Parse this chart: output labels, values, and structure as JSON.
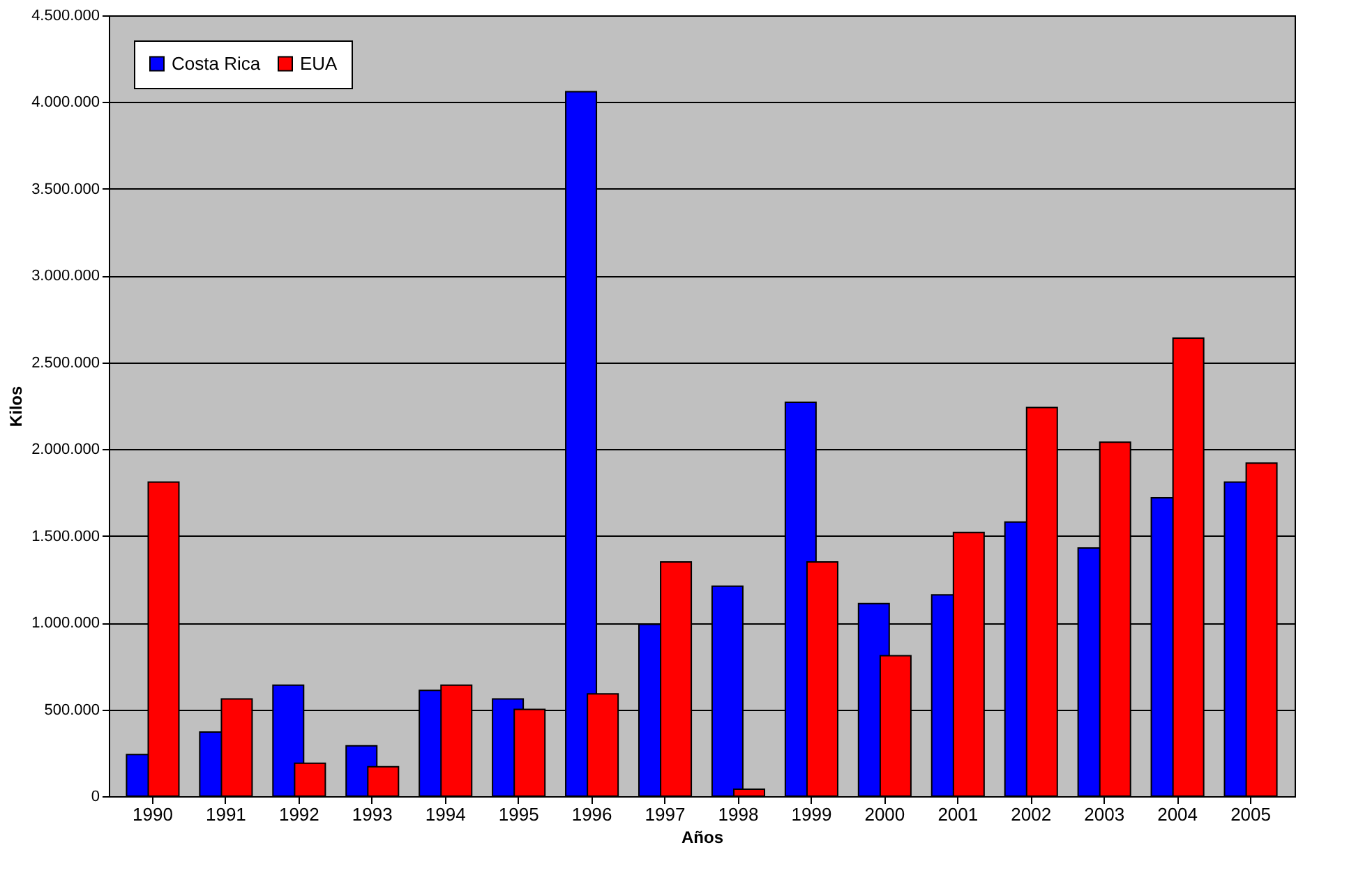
{
  "chart_data": {
    "type": "bar",
    "xlabel": "Años",
    "ylabel": "Kilos",
    "categories": [
      "1990",
      "1991",
      "1992",
      "1993",
      "1994",
      "1995",
      "1996",
      "1997",
      "1998",
      "1999",
      "2000",
      "2001",
      "2002",
      "2003",
      "2004",
      "2005"
    ],
    "series": [
      {
        "name": "Costa Rica",
        "color": "#0000ff",
        "values": [
          240000,
          370000,
          640000,
          290000,
          610000,
          560000,
          4060000,
          990000,
          1210000,
          2270000,
          1110000,
          1160000,
          1580000,
          1430000,
          1720000,
          1810000
        ]
      },
      {
        "name": "EUA",
        "color": "#ff0000",
        "values": [
          1810000,
          560000,
          190000,
          170000,
          640000,
          500000,
          590000,
          1350000,
          40000,
          1350000,
          810000,
          1520000,
          2240000,
          2040000,
          2640000,
          1920000
        ]
      }
    ],
    "ylim": [
      0,
      4500000
    ],
    "yticks": [
      {
        "value": 0,
        "label": "0"
      },
      {
        "value": 500000,
        "label": "500.000"
      },
      {
        "value": 1000000,
        "label": "1.000.000"
      },
      {
        "value": 1500000,
        "label": "1.500.000"
      },
      {
        "value": 2000000,
        "label": "2.000.000"
      },
      {
        "value": 2500000,
        "label": "2.500.000"
      },
      {
        "value": 3000000,
        "label": "3.000.000"
      },
      {
        "value": 3500000,
        "label": "3.500.000"
      },
      {
        "value": 4000000,
        "label": "4.000.000"
      },
      {
        "value": 4500000,
        "label": "4.500.000"
      }
    ],
    "grid": "y",
    "legend": "top left"
  }
}
